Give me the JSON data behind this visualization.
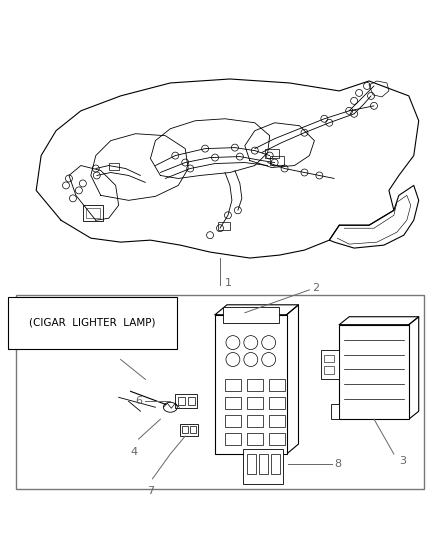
{
  "background_color": "#ffffff",
  "line_color": "#000000",
  "label_color": "#666666",
  "figure_width": 4.38,
  "figure_height": 5.33,
  "dpi": 100,
  "label_1": "1",
  "label_2": "2",
  "label_3": "3",
  "label_4": "4",
  "label_6": "6",
  "label_7": "7",
  "label_8": "8",
  "cigar_lighter_text": "(CIGAR  LIGHTER  LAMP)",
  "font_size_labels": 8,
  "font_size_cigar": 7.5
}
